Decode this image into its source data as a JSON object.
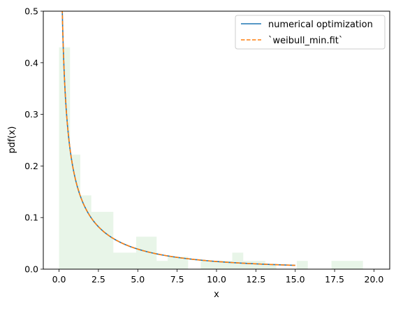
{
  "chart_data": {
    "type": "line",
    "title": "",
    "xlabel": "x",
    "ylabel": "pdf(x)",
    "xlim": [
      -1.0,
      21.0
    ],
    "ylim": [
      0.0,
      0.5
    ],
    "xticks": [
      0.0,
      2.5,
      5.0,
      7.5,
      10.0,
      12.5,
      15.0,
      17.5,
      20.0
    ],
    "xtick_labels": [
      "0.0",
      "2.5",
      "5.0",
      "7.5",
      "10.0",
      "12.5",
      "15.0",
      "17.5",
      "20.0"
    ],
    "yticks": [
      0.0,
      0.1,
      0.2,
      0.3,
      0.4,
      0.5
    ],
    "ytick_labels": [
      "0.0",
      "0.1",
      "0.2",
      "0.3",
      "0.4",
      "0.5"
    ],
    "grid": false,
    "legend_position": "top-right",
    "histogram": {
      "color": "#2ca02c",
      "opacity": 0.11,
      "bins": [
        {
          "x0": 0.0,
          "x1": 0.7,
          "height": 0.43
        },
        {
          "x0": 0.7,
          "x1": 1.35,
          "height": 0.222
        },
        {
          "x0": 1.35,
          "x1": 2.05,
          "height": 0.143
        },
        {
          "x0": 2.05,
          "x1": 3.45,
          "height": 0.111
        },
        {
          "x0": 3.45,
          "x1": 4.9,
          "height": 0.032
        },
        {
          "x0": 4.9,
          "x1": 6.2,
          "height": 0.063
        },
        {
          "x0": 6.2,
          "x1": 6.9,
          "height": 0.016
        },
        {
          "x0": 6.9,
          "x1": 8.2,
          "height": 0.024
        },
        {
          "x0": 9.0,
          "x1": 11.0,
          "height": 0.016
        },
        {
          "x0": 11.0,
          "x1": 11.7,
          "height": 0.032
        },
        {
          "x0": 11.7,
          "x1": 13.1,
          "height": 0.016
        },
        {
          "x0": 13.1,
          "x1": 13.8,
          "height": 0.008
        },
        {
          "x0": 15.1,
          "x1": 15.8,
          "height": 0.016
        },
        {
          "x0": 17.3,
          "x1": 19.3,
          "height": 0.016
        }
      ]
    },
    "curve_model": {
      "shape": 0.56,
      "scale": 2.8,
      "x_start": 0.02,
      "x_end": 15.0
    },
    "series": [
      {
        "name": "numerical optimization",
        "color": "#1f77b4",
        "style": "solid"
      },
      {
        "name": "`weibull_min.fit`",
        "color": "#ff7f0e",
        "style": "dashed"
      }
    ]
  }
}
